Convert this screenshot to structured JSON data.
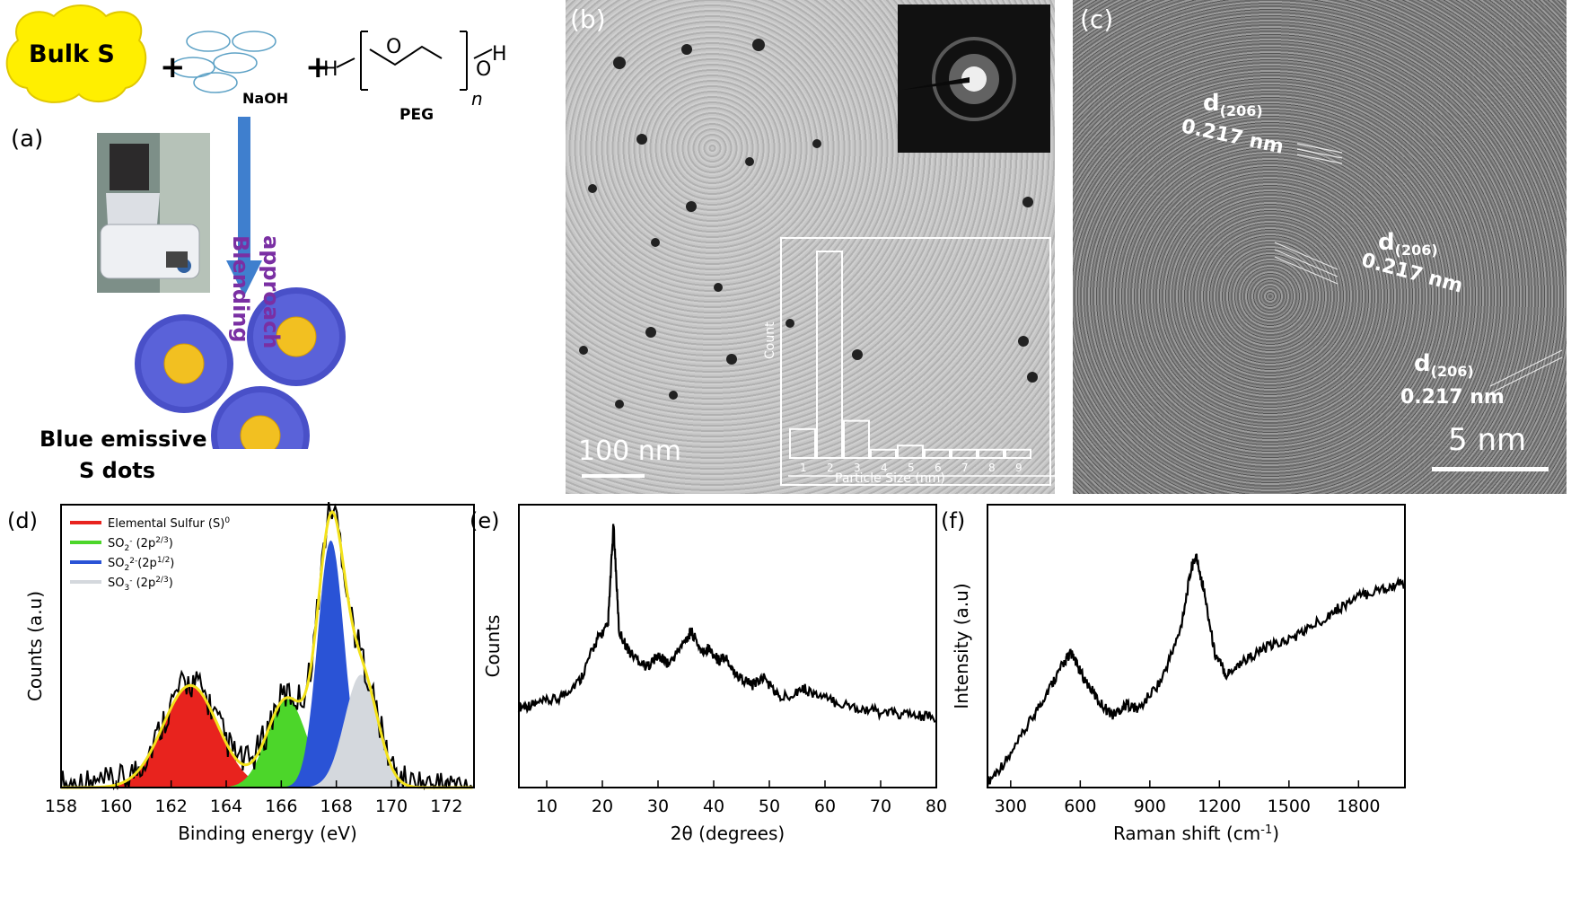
{
  "panel_a": {
    "label": "(a)",
    "bulk": "Bulk S",
    "plus": "+",
    "naoh": "NaOH",
    "peg": "PEG",
    "peg_h_left": "H",
    "peg_o1": "O",
    "peg_o2": "O",
    "peg_h_right": "H",
    "peg_n": "n",
    "arrow_line1": "Blending",
    "arrow_line2": "approach",
    "product_line1": "Blue emissive",
    "product_line2": "S dots"
  },
  "panel_b": {
    "label": "(b)",
    "scale": "100 nm",
    "hist_ylabel": "Count",
    "hist_xlabel": "Particle Size (nm)",
    "hist_categories": [
      "1",
      "2",
      "3",
      "4",
      "5",
      "6",
      "7",
      "8",
      "9"
    ],
    "hist_values": [
      14,
      100,
      18,
      4,
      6,
      4,
      4,
      4,
      4
    ]
  },
  "panel_c": {
    "label": "(c)",
    "scale": "5 nm",
    "d_sub": "(206)",
    "d_label": "d",
    "spacing": "0.217 nm"
  },
  "chart_data": [
    {
      "panel": "(d)",
      "type": "area",
      "xlabel": "Binding energy (eV)",
      "ylabel": "Counts (a.u)",
      "xlim": [
        158,
        173
      ],
      "xticks": [
        158,
        160,
        162,
        164,
        166,
        168,
        170,
        172
      ],
      "legend": [
        {
          "name": "Elemental Sulfur (S",
          "sup": "0",
          "tail": ")",
          "color": "#e8231e"
        },
        {
          "name": "SO",
          "sub": "2",
          "sup2": "-",
          "tail": " (2p",
          "sup": "2/3",
          "tail2": ")",
          "color": "#4cd62a"
        },
        {
          "name": "SO",
          "sub": "2",
          "sup2": "2-",
          "tail": "(2p",
          "sup": "1/2",
          "tail2": ")",
          "color": "#2a53d6"
        },
        {
          "name": "SO",
          "sub": "3",
          "sup2": "-",
          "tail": " (2p",
          "sup": "2/3",
          "tail2": ")",
          "color": "#d4d8dd"
        }
      ],
      "peaks": [
        {
          "center": 162.7,
          "height": 0.38,
          "width": 1.0,
          "color": "#e8231e"
        },
        {
          "center": 166.2,
          "height": 0.33,
          "width": 0.7,
          "color": "#4cd62a"
        },
        {
          "center": 167.8,
          "height": 0.92,
          "width": 0.48,
          "color": "#2a53d6"
        },
        {
          "center": 168.9,
          "height": 0.42,
          "width": 0.6,
          "color": "#d4d8dd"
        }
      ]
    },
    {
      "panel": "(e)",
      "type": "line",
      "xlabel": "2θ (degrees)",
      "ylabel": "Counts",
      "xlim": [
        5,
        80
      ],
      "xticks": [
        10,
        20,
        30,
        40,
        50,
        60,
        70,
        80
      ],
      "points": [
        [
          5,
          0.3
        ],
        [
          8,
          0.31
        ],
        [
          12,
          0.33
        ],
        [
          16,
          0.4
        ],
        [
          19,
          0.55
        ],
        [
          21,
          0.6
        ],
        [
          22,
          0.98
        ],
        [
          23,
          0.58
        ],
        [
          25,
          0.5
        ],
        [
          28,
          0.45
        ],
        [
          30,
          0.49
        ],
        [
          32,
          0.46
        ],
        [
          35,
          0.55
        ],
        [
          36,
          0.58
        ],
        [
          38,
          0.5
        ],
        [
          39,
          0.52
        ],
        [
          41,
          0.47
        ],
        [
          42,
          0.49
        ],
        [
          44,
          0.42
        ],
        [
          47,
          0.38
        ],
        [
          49,
          0.41
        ],
        [
          52,
          0.33
        ],
        [
          56,
          0.37
        ],
        [
          60,
          0.33
        ],
        [
          65,
          0.3
        ],
        [
          70,
          0.28
        ],
        [
          75,
          0.27
        ],
        [
          80,
          0.26
        ]
      ]
    },
    {
      "panel": "(f)",
      "type": "line",
      "xlabel": "Raman shift (cm",
      "xlabel_sup": "-1",
      "xlabel_tail": ")",
      "ylabel": "Intensity (a.u)",
      "xlim": [
        200,
        2000
      ],
      "xticks": [
        300,
        600,
        900,
        1200,
        1500,
        1800
      ],
      "points": [
        [
          200,
          0.02
        ],
        [
          300,
          0.12
        ],
        [
          400,
          0.27
        ],
        [
          480,
          0.39
        ],
        [
          540,
          0.48
        ],
        [
          560,
          0.5
        ],
        [
          600,
          0.43
        ],
        [
          680,
          0.32
        ],
        [
          740,
          0.27
        ],
        [
          800,
          0.31
        ],
        [
          850,
          0.29
        ],
        [
          950,
          0.4
        ],
        [
          1030,
          0.58
        ],
        [
          1080,
          0.82
        ],
        [
          1100,
          0.86
        ],
        [
          1130,
          0.75
        ],
        [
          1180,
          0.5
        ],
        [
          1230,
          0.42
        ],
        [
          1300,
          0.47
        ],
        [
          1400,
          0.52
        ],
        [
          1500,
          0.55
        ],
        [
          1600,
          0.6
        ],
        [
          1700,
          0.66
        ],
        [
          1800,
          0.71
        ],
        [
          1900,
          0.74
        ],
        [
          2000,
          0.76
        ]
      ]
    }
  ]
}
